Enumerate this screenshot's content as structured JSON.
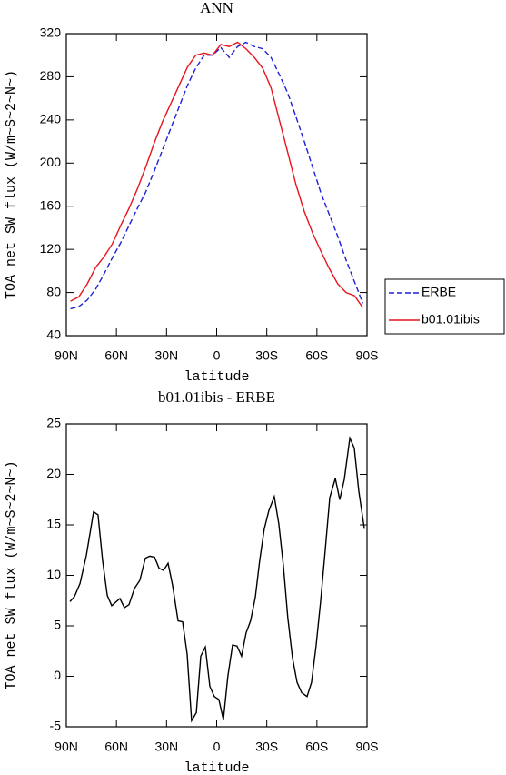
{
  "chart_data": [
    {
      "type": "line",
      "title": "ANN",
      "xlabel": "latitude",
      "ylabel": "TOA net SW flux (W/m~S~2~N~)",
      "x": [
        87.5,
        82.5,
        77.5,
        72.5,
        67.5,
        62.5,
        57.5,
        52.5,
        47.5,
        42.5,
        37.5,
        32.5,
        27.5,
        22.5,
        17.5,
        12.5,
        7.5,
        2.5,
        -2.5,
        -7.5,
        -12.5,
        -17.5,
        -22.5,
        -27.5,
        -32.5,
        -37.5,
        -42.5,
        -47.5,
        -52.5,
        -57.5,
        -62.5,
        -67.5,
        -72.5,
        -77.5,
        -82.5,
        -87.5
      ],
      "series": [
        {
          "name": "ERBE",
          "color": "#1f1fd6",
          "line_style": "dashed",
          "values": [
            65,
            67,
            73,
            83,
            97,
            112,
            126,
            142,
            158,
            173,
            192,
            212,
            232,
            252,
            272,
            288,
            300,
            300,
            307,
            298,
            308,
            312,
            308,
            306,
            298,
            282,
            265,
            243,
            220,
            196,
            172,
            152,
            132,
            110,
            90,
            70
          ]
        },
        {
          "name": "b01.01ibis",
          "color": "#e8141e",
          "line_style": "solid",
          "values": [
            72,
            76,
            88,
            103,
            113,
            125,
            142,
            158,
            176,
            196,
            218,
            238,
            255,
            272,
            289,
            300,
            302,
            300,
            310,
            308,
            312,
            306,
            298,
            288,
            270,
            240,
            210,
            180,
            155,
            135,
            118,
            102,
            88,
            80,
            77,
            66
          ]
        }
      ],
      "xlim": [
        90,
        -90
      ],
      "xticks": [
        {
          "value": 90,
          "label": "90N"
        },
        {
          "value": 60,
          "label": "60N"
        },
        {
          "value": 30,
          "label": "30N"
        },
        0,
        {
          "value": -30,
          "label": "30S"
        },
        {
          "value": -60,
          "label": "60S"
        },
        {
          "value": -90,
          "label": "90S"
        }
      ],
      "ylim": [
        40,
        320
      ],
      "yticks": [
        40,
        80,
        120,
        160,
        200,
        240,
        280,
        320
      ],
      "legend": "right"
    },
    {
      "type": "line",
      "title": "b01.01ibis - ERBE",
      "xlabel": "latitude",
      "ylabel": "TOA net SW flux (W/m~S~2~N~)",
      "x": [
        87.8,
        85.1,
        81.8,
        78.0,
        73.7,
        71.0,
        68.3,
        65.5,
        62.8,
        57.9,
        55.2,
        52.5,
        49.2,
        46.0,
        42.7,
        40.0,
        37.2,
        34.5,
        31.8,
        29.1,
        26.4,
        23.1,
        20.4,
        17.7,
        15.0,
        12.2,
        9.5,
        6.8,
        4.1,
        1.4,
        -1.3,
        -4.0,
        -6.7,
        -9.5,
        -12.2,
        -14.9,
        -17.6,
        -20.3,
        -23.1,
        -25.8,
        -28.5,
        -31.2,
        -34.5,
        -37.2,
        -39.9,
        -42.6,
        -45.4,
        -48.1,
        -50.8,
        -54.1,
        -56.8,
        -59.5,
        -62.2,
        -65.0,
        -67.7,
        -71.0,
        -73.7,
        -76.4,
        -79.7,
        -82.4,
        -85.1,
        -88.4
      ],
      "series": [
        {
          "name": "b01.01ibis - ERBE",
          "color": "#000000",
          "line_style": "solid",
          "values": [
            7.4,
            7.9,
            9.2,
            12,
            16.3,
            16,
            11.5,
            8,
            7,
            7.7,
            6.8,
            7.1,
            8.7,
            9.5,
            11.7,
            11.9,
            11.8,
            10.7,
            10.5,
            11.2,
            9,
            5.5,
            5.4,
            2.2,
            -4.4,
            -3.6,
            2,
            2.9,
            -1,
            -2,
            -2.3,
            -4.3,
            0,
            3.1,
            3,
            2,
            4.3,
            5.5,
            7.8,
            11.5,
            14.6,
            16.4,
            17.8,
            15.1,
            11,
            5.8,
            1.8,
            -0.6,
            -1.6,
            -2,
            -0.6,
            3,
            7.4,
            12.5,
            17.7,
            19.6,
            17.5,
            19.5,
            23.6,
            22.6,
            18.3,
            14.6
          ]
        }
      ],
      "xlim": [
        90,
        -90
      ],
      "xticks": [
        {
          "value": 90,
          "label": "90N"
        },
        {
          "value": 60,
          "label": "60N"
        },
        {
          "value": 30,
          "label": "30N"
        },
        0,
        {
          "value": -30,
          "label": "30S"
        },
        {
          "value": -60,
          "label": "60S"
        },
        {
          "value": -90,
          "label": "90S"
        }
      ],
      "ylim": [
        -5,
        25
      ],
      "yticks": [
        -5,
        0,
        5,
        10,
        15,
        20,
        25
      ]
    }
  ]
}
